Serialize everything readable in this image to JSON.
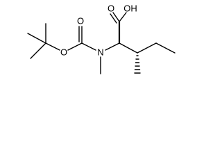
{
  "atoms": [
    {
      "label": "O"
    },
    {
      "label": "OH"
    },
    {
      "label": "O"
    },
    {
      "label": "O"
    },
    {
      "label": "N"
    }
  ]
}
